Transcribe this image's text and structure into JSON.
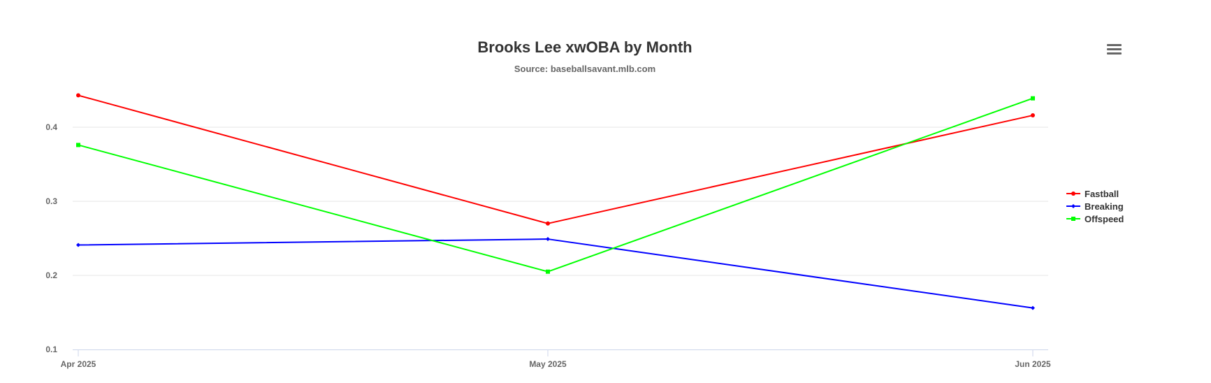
{
  "chart": {
    "title": "Brooks Lee xwOBA by Month",
    "subtitle": "Source: baseballsavant.mlb.com",
    "menu_icon": "hamburger-menu-icon"
  },
  "chart_data": {
    "type": "line",
    "title": "Brooks Lee xwOBA by Month",
    "subtitle": "Source: baseballsavant.mlb.com",
    "xlabel": "",
    "ylabel": "",
    "categories": [
      "Apr 2025",
      "May 2025",
      "Jun 2025"
    ],
    "yticks": [
      "0.1",
      "0.2",
      "0.3",
      "0.4"
    ],
    "ylim": [
      0.1,
      0.45
    ],
    "grid": true,
    "legend_position": "right",
    "series": [
      {
        "name": "Fastball",
        "color": "#ff0000",
        "marker": "circle",
        "values": [
          0.443,
          0.27,
          0.416
        ]
      },
      {
        "name": "Breaking",
        "color": "#0000ff",
        "marker": "diamond",
        "values": [
          0.241,
          0.249,
          0.156
        ]
      },
      {
        "name": "Offspeed",
        "color": "#00ff00",
        "marker": "square",
        "values": [
          0.376,
          0.205,
          0.439
        ]
      }
    ]
  }
}
